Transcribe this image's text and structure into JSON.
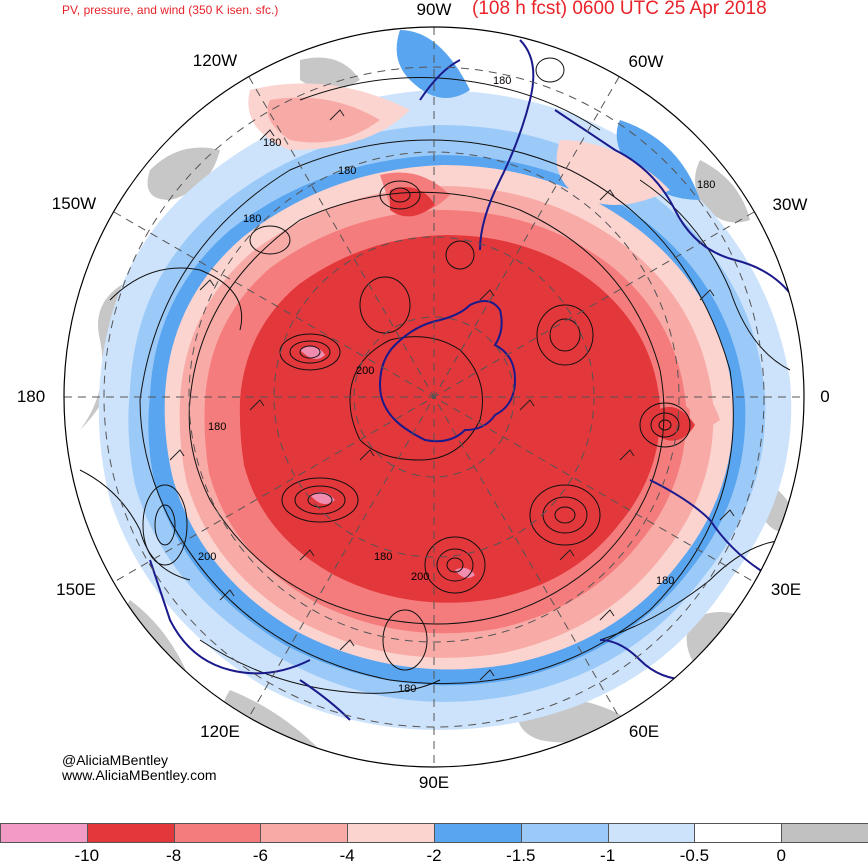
{
  "header": {
    "subtitle": "PV, pressure, and wind (350 K isen. sfc.)",
    "title": "(108 h fcst) 0600 UTC 25 Apr 2018"
  },
  "longitude_labels": [
    "90W",
    "60W",
    "30W",
    "0",
    "30E",
    "60E",
    "90E",
    "120E",
    "150E",
    "180",
    "150W",
    "120W"
  ],
  "contour_labels": [
    "180",
    "180",
    "180",
    "180",
    "180",
    "180",
    "180",
    "200",
    "200",
    "200",
    "180",
    "180"
  ],
  "credit": {
    "handle": "@AliciaMBentley",
    "website": "www.AliciaMBentley.com"
  },
  "colorbar": {
    "colors": [
      "#f39bc7",
      "#e2373b",
      "#f57c7c",
      "#f8aaa6",
      "#fbd4d0",
      "#5aa5ef",
      "#9ccaf8",
      "#cde3fb",
      "#ffffff",
      "#c1c1c1"
    ],
    "labels": [
      "-10",
      "-8",
      "-6",
      "-4",
      "-2",
      "-1.5",
      "-1",
      "-0.5",
      "0"
    ]
  },
  "map": {
    "projection": "polar stereographic (south pole)",
    "field_colors": {
      "strong_neg": "#e2373b",
      "mod_neg": "#f57c7c",
      "weak_neg": "#f8aaa6",
      "faint_neg": "#fbd4d0",
      "blue_dark": "#5aa5ef",
      "blue_mid": "#9ccaf8",
      "blue_light": "#cde3fb",
      "gray": "#c1c1c1",
      "coast": "#1a1a8c"
    }
  }
}
